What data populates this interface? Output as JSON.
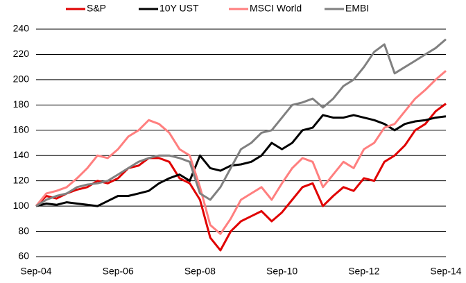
{
  "chart_data": {
    "type": "line",
    "x": [
      "Sep-04",
      "Dec-04",
      "Mar-05",
      "Jun-05",
      "Sep-05",
      "Dec-05",
      "Mar-06",
      "Jun-06",
      "Sep-06",
      "Dec-06",
      "Mar-07",
      "Jun-07",
      "Sep-07",
      "Dec-07",
      "Mar-08",
      "Jun-08",
      "Sep-08",
      "Dec-08",
      "Mar-09",
      "Jun-09",
      "Sep-09",
      "Dec-09",
      "Mar-10",
      "Jun-10",
      "Sep-10",
      "Dec-10",
      "Mar-11",
      "Jun-11",
      "Sep-11",
      "Dec-11",
      "Mar-12",
      "Jun-12",
      "Sep-12",
      "Dec-12",
      "Mar-13",
      "Jun-13",
      "Sep-13",
      "Dec-13",
      "Mar-14",
      "Jun-14",
      "Sep-14"
    ],
    "xticks": [
      "Sep-04",
      "Sep-06",
      "Sep-08",
      "Sep-10",
      "Sep-12",
      "Sep-14"
    ],
    "series": [
      {
        "name": "S&P",
        "color": "#e00000",
        "values": [
          100,
          108,
          106,
          110,
          113,
          115,
          120,
          118,
          122,
          130,
          132,
          138,
          138,
          135,
          122,
          118,
          105,
          75,
          65,
          80,
          88,
          92,
          96,
          88,
          95,
          105,
          115,
          118,
          100,
          108,
          115,
          112,
          122,
          120,
          135,
          140,
          148,
          160,
          165,
          175,
          181
        ]
      },
      {
        "name": "10Y UST",
        "color": "#000000",
        "values": [
          100,
          102,
          101,
          103,
          102,
          101,
          100,
          104,
          108,
          108,
          110,
          112,
          118,
          122,
          125,
          120,
          140,
          130,
          128,
          132,
          133,
          135,
          140,
          150,
          145,
          150,
          160,
          162,
          172,
          170,
          170,
          172,
          170,
          168,
          165,
          160,
          165,
          167,
          168,
          170,
          171
        ]
      },
      {
        "name": "MSCI World",
        "color": "#ff7f7f",
        "values": [
          100,
          110,
          112,
          115,
          122,
          130,
          140,
          138,
          145,
          155,
          160,
          168,
          165,
          158,
          145,
          140,
          115,
          85,
          78,
          90,
          105,
          110,
          115,
          105,
          118,
          130,
          138,
          135,
          115,
          125,
          135,
          130,
          145,
          150,
          162,
          165,
          175,
          185,
          192,
          200,
          207
        ]
      },
      {
        "name": "EMBI",
        "color": "#808080",
        "values": [
          100,
          105,
          108,
          110,
          115,
          117,
          118,
          120,
          125,
          130,
          135,
          138,
          140,
          140,
          138,
          135,
          110,
          105,
          115,
          130,
          145,
          150,
          158,
          160,
          170,
          180,
          182,
          185,
          178,
          185,
          195,
          200,
          210,
          222,
          228,
          205,
          210,
          215,
          220,
          225,
          232
        ]
      }
    ],
    "ylim": [
      60,
      240
    ],
    "yticks": [
      60,
      80,
      100,
      120,
      140,
      160,
      180,
      200,
      220,
      240
    ],
    "grid": true,
    "legend": "top"
  }
}
